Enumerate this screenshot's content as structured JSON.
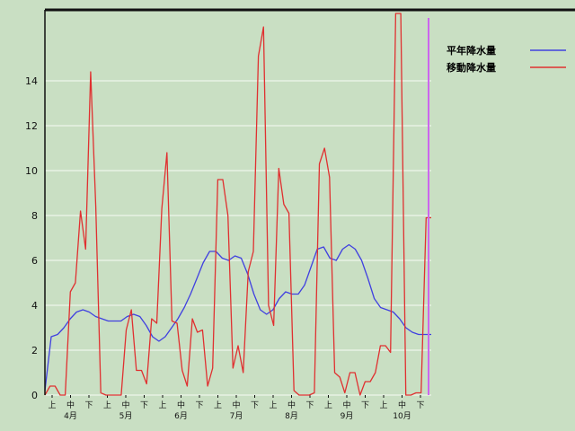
{
  "chart_data": {
    "type": "line",
    "ylim": [
      0,
      16
    ],
    "yticks": [
      0,
      2,
      4,
      6,
      8,
      10,
      12,
      14
    ],
    "grid": true,
    "legend_position": "top-right",
    "x_ticks": [
      {
        "label": "上"
      },
      {
        "label": "中"
      },
      {
        "label": "下"
      },
      {
        "label": "上"
      },
      {
        "label": "中"
      },
      {
        "label": "下"
      },
      {
        "label": "上"
      },
      {
        "label": "中"
      },
      {
        "label": "下"
      },
      {
        "label": "上"
      },
      {
        "label": "中"
      },
      {
        "label": "下"
      },
      {
        "label": "上"
      },
      {
        "label": "中"
      },
      {
        "label": "下"
      },
      {
        "label": "上"
      },
      {
        "label": "中"
      },
      {
        "label": "下"
      },
      {
        "label": "上"
      },
      {
        "label": "中"
      },
      {
        "label": "下"
      }
    ],
    "months": [
      "4月",
      "5月",
      "6月",
      "7月",
      "8月",
      "9月",
      "10月"
    ],
    "series": [
      {
        "name": "平年降水量",
        "color": "#4040e0",
        "values": [
          0.2,
          2.6,
          2.7,
          3.0,
          3.4,
          3.7,
          3.8,
          3.7,
          3.5,
          3.4,
          3.3,
          3.3,
          3.3,
          3.5,
          3.6,
          3.5,
          3.1,
          2.6,
          2.4,
          2.6,
          3.0,
          3.4,
          3.9,
          4.5,
          5.2,
          5.9,
          6.4,
          6.4,
          6.1,
          6.0,
          6.2,
          6.1,
          5.4,
          4.5,
          3.8,
          3.6,
          3.8,
          4.3,
          4.6,
          4.5,
          4.5,
          4.9,
          5.7,
          6.5,
          6.6,
          6.1,
          6.0,
          6.5,
          6.7,
          6.5,
          6.0,
          5.2,
          4.3,
          3.9,
          3.8,
          3.7,
          3.4,
          3.0,
          2.8,
          2.7,
          2.7,
          2.7
        ]
      },
      {
        "name": "移動降水量",
        "color": "#e03030",
        "values": [
          0.0,
          0.4,
          0.4,
          0.0,
          0.0,
          4.6,
          5.0,
          8.2,
          6.5,
          14.4,
          8.4,
          0.1,
          0.0,
          0.0,
          0.0,
          0.0,
          2.9,
          3.8,
          1.1,
          1.1,
          0.5,
          3.4,
          3.2,
          8.3,
          10.8,
          3.3,
          3.2,
          1.1,
          0.4,
          3.4,
          2.8,
          2.9,
          0.4,
          1.2,
          9.6,
          9.6,
          8.0,
          1.2,
          2.2,
          1.0,
          5.5,
          6.4,
          15.1,
          16.4,
          4.0,
          3.1,
          10.1,
          8.5,
          8.1,
          0.2,
          0.0,
          0.0,
          0.0,
          0.1,
          10.3,
          11.0,
          9.7,
          1.0,
          0.8,
          0.1,
          1.0,
          1.0,
          0.0,
          0.6,
          0.6,
          1.0,
          2.2,
          2.2,
          1.9,
          17.0,
          17.0,
          0.0,
          0.0,
          0.1,
          0.1,
          7.9,
          7.9
        ]
      }
    ]
  }
}
